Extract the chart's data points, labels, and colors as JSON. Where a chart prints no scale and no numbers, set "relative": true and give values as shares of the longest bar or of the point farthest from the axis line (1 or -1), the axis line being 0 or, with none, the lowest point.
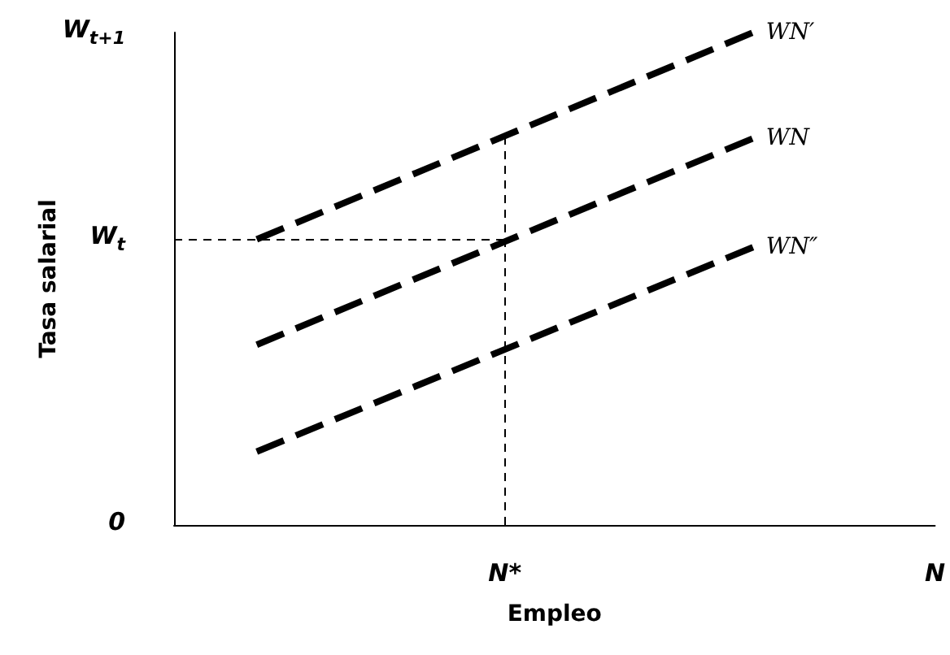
{
  "chart_data": {
    "type": "line",
    "relative": true,
    "xlabel": "Empleo",
    "ylabel": "Tasa salarial",
    "categories": [
      null,
      null,
      null,
      null,
      null,
      null,
      null,
      null,
      null,
      null,
      null,
      null,
      null,
      null,
      null,
      null,
      null,
      null,
      null,
      null,
      "N*",
      null,
      null,
      null,
      null,
      null,
      null,
      null,
      null,
      null,
      null,
      null,
      null,
      null,
      null,
      null,
      null,
      null,
      null,
      null,
      null,
      null,
      null,
      null,
      null,
      null,
      "N"
    ],
    "series": [
      {
        "name": "WN′",
        "color": "#000000",
        "values": [
          null,
          null,
          null,
          null,
          null,
          0.58,
          null,
          null,
          null,
          null,
          null,
          null,
          null,
          null,
          null,
          null,
          null,
          null,
          null,
          null,
          null,
          null,
          null,
          null,
          null,
          null,
          null,
          null,
          null,
          null,
          null,
          null,
          null,
          null,
          null,
          1.0,
          null,
          null,
          null,
          null,
          null,
          null,
          null,
          null,
          null,
          null,
          null
        ]
      },
      {
        "name": "WN",
        "color": "#000000",
        "values": [
          null,
          null,
          null,
          null,
          null,
          0.366,
          null,
          null,
          null,
          null,
          null,
          null,
          null,
          null,
          null,
          null,
          null,
          null,
          null,
          null,
          null,
          null,
          null,
          null,
          null,
          null,
          null,
          null,
          null,
          null,
          null,
          null,
          null,
          null,
          null,
          0.785,
          null,
          null,
          null,
          null,
          null,
          null,
          null,
          null,
          null,
          null,
          null
        ]
      },
      {
        "name": "WN″",
        "color": "#000000",
        "values": [
          null,
          null,
          null,
          null,
          null,
          0.149,
          null,
          null,
          null,
          null,
          null,
          null,
          null,
          null,
          null,
          null,
          null,
          null,
          null,
          null,
          null,
          null,
          null,
          null,
          null,
          null,
          null,
          null,
          null,
          null,
          null,
          null,
          null,
          null,
          null,
          0.564,
          null,
          null,
          null,
          null,
          null,
          null,
          null,
          null,
          null,
          null,
          null
        ]
      }
    ],
    "annotations": [
      "0",
      "W$_{t}$",
      "W$_{t+1}$"
    ],
    "ref_lines": [
      {
        "axis": "y",
        "value": 0.58,
        "color": "#000000",
        "line_style": "dashed"
      },
      {
        "axis": "x",
        "value": "N*",
        "color": "#000000",
        "line_style": "dashed"
      }
    ],
    "line_style": "dashed",
    "marker": "none",
    "grid": false,
    "legend": false
  }
}
